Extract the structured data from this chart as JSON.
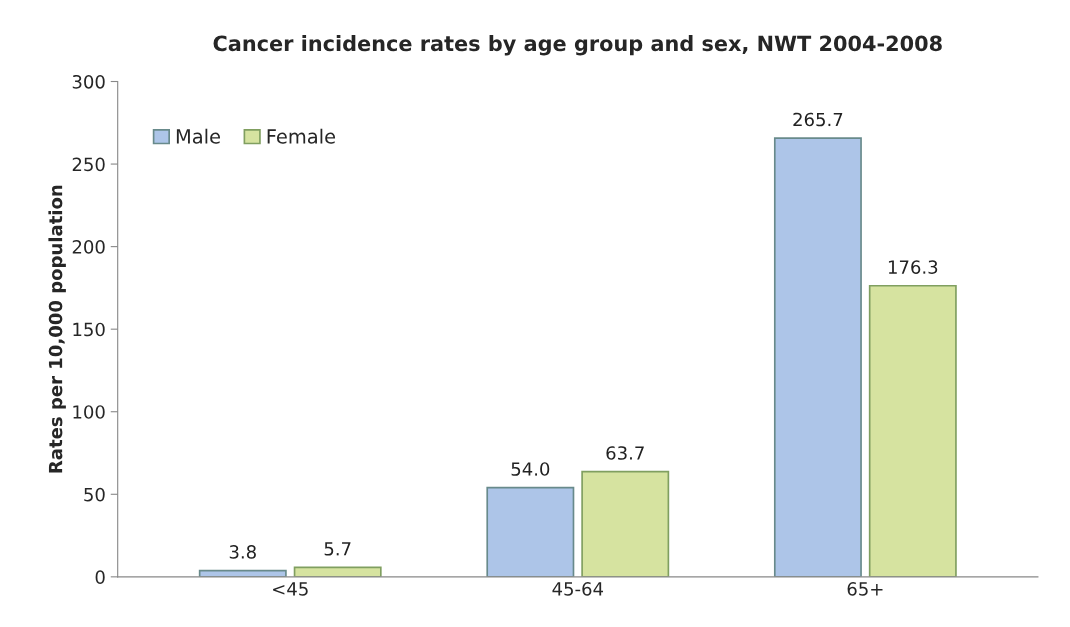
{
  "chart_data": {
    "type": "bar",
    "title": "Cancer incidence rates by age group and sex, NWT 2004-2008",
    "ylabel": "Rates per 10,000 population",
    "categories": [
      "<45",
      "45-64",
      "65+"
    ],
    "series": [
      {
        "name": "Male",
        "color": "#adc5e8",
        "values": [
          3.8,
          54.0,
          265.7
        ],
        "value_labels": [
          "3.8",
          "54.0",
          "265.7"
        ]
      },
      {
        "name": "Female",
        "color": "#d6e3a0",
        "values": [
          5.7,
          63.7,
          176.3
        ],
        "value_labels": [
          "5.7",
          "63.7",
          "176.3"
        ]
      }
    ],
    "ylim": [
      0,
      300
    ],
    "yticks": [
      0,
      50,
      100,
      150,
      200,
      250,
      300
    ],
    "grid": false,
    "legend": "top left"
  }
}
